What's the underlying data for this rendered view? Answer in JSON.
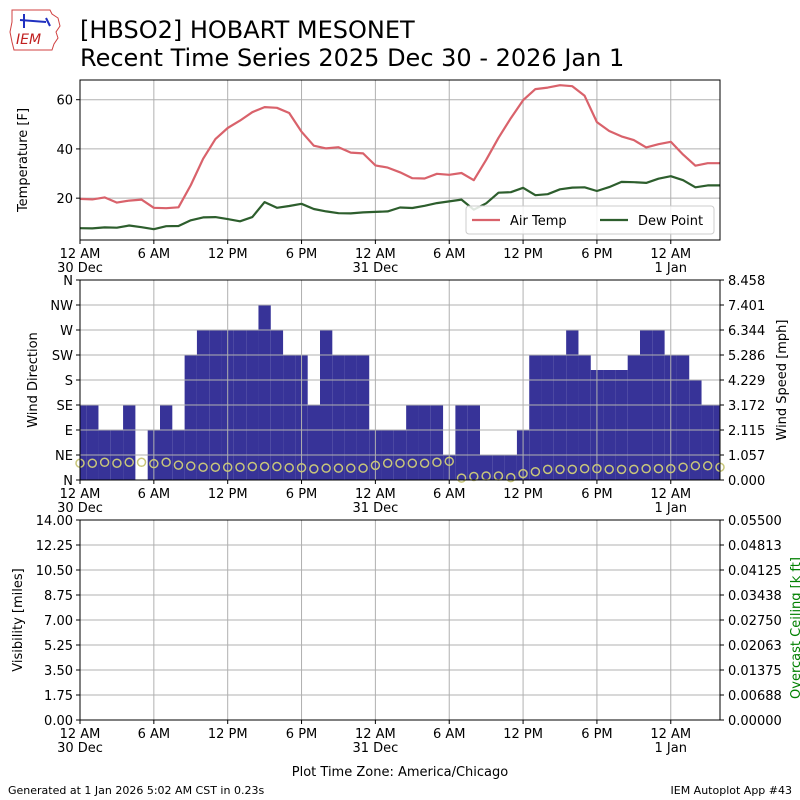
{
  "header": {
    "logo_text": "IEM",
    "title_line1": "[HBSO2] HOBART MESONET",
    "title_line2": "Recent Time Series 2025 Dec 30 - 2026 Jan 1"
  },
  "footer": {
    "generated": "Generated at 1 Jan 2026 5:02 AM CST in 0.23s",
    "app": "IEM Autoplot App #43"
  },
  "colors": {
    "air_temp": "#d9626b",
    "dew_point": "#2d5e2d",
    "wind_bar": "#373398",
    "wind_speed_marker": "#c8c67a",
    "grid": "#b0b0b0",
    "ceiling_label": "#008000"
  },
  "chart_data": [
    {
      "type": "line",
      "title": "",
      "ylabel": "Temperature [F]",
      "xlabel": "",
      "ylim": [
        3,
        68
      ],
      "yticks": [
        20,
        40,
        60
      ],
      "x_unit": "hours since 12 AM 30 Dec",
      "xlim": [
        0,
        52
      ],
      "xtick_labels": [
        {
          "x": 0,
          "label": "12 AM",
          "sub": "30 Dec"
        },
        {
          "x": 6,
          "label": "6 AM",
          "sub": ""
        },
        {
          "x": 12,
          "label": "12 PM",
          "sub": ""
        },
        {
          "x": 18,
          "label": "6 PM",
          "sub": ""
        },
        {
          "x": 24,
          "label": "12 AM",
          "sub": "31 Dec"
        },
        {
          "x": 30,
          "label": "6 AM",
          "sub": ""
        },
        {
          "x": 36,
          "label": "12 PM",
          "sub": ""
        },
        {
          "x": 42,
          "label": "6 PM",
          "sub": ""
        },
        {
          "x": 48,
          "label": "12 AM",
          "sub": "1 Jan"
        }
      ],
      "grid": true,
      "legend_position": "lower-right",
      "x": [
        0,
        1,
        2,
        3,
        4,
        5,
        6,
        7,
        8,
        9,
        10,
        11,
        12,
        13,
        14,
        15,
        16,
        17,
        18,
        19,
        20,
        21,
        22,
        23,
        24,
        25,
        26,
        27,
        28,
        29,
        30,
        31,
        32,
        33,
        34,
        35,
        36,
        37,
        38,
        39,
        40,
        41,
        42,
        43,
        44,
        45,
        46,
        47,
        48,
        49,
        50,
        51,
        52
      ],
      "series": [
        {
          "name": "Air Temp",
          "color": "#d9626b",
          "values": [
            19.7,
            19.5,
            20.3,
            18.2,
            19.0,
            19.4,
            16.1,
            15.9,
            16.3,
            25.3,
            36.0,
            44.0,
            48.5,
            51.5,
            54.9,
            57.0,
            56.7,
            54.6,
            47.0,
            41.3,
            40.2,
            40.7,
            38.5,
            38.2,
            33.3,
            32.4,
            30.5,
            28.1,
            28.0,
            29.9,
            29.5,
            30.2,
            27.3,
            35.6,
            44.5,
            52.5,
            59.8,
            64.3,
            64.9,
            65.9,
            65.5,
            61.6,
            50.9,
            47.3,
            45.1,
            43.6,
            40.6,
            41.9,
            42.9,
            37.7,
            33.2,
            34.2,
            34.2
          ]
        },
        {
          "name": "Dew Point",
          "color": "#2d5e2d",
          "values": [
            7.8,
            7.7,
            8.1,
            8.0,
            8.9,
            8.2,
            7.4,
            8.6,
            8.7,
            11.0,
            12.2,
            12.3,
            11.5,
            10.6,
            12.3,
            18.4,
            16.1,
            16.8,
            17.7,
            15.6,
            14.6,
            13.9,
            13.8,
            14.2,
            14.4,
            14.6,
            16.2,
            16.0,
            16.9,
            18.0,
            18.7,
            19.4,
            15.3,
            17.9,
            22.2,
            22.4,
            24.2,
            21.2,
            21.6,
            23.6,
            24.3,
            24.4,
            22.9,
            24.5,
            26.6,
            26.5,
            26.2,
            27.9,
            28.9,
            27.3,
            24.4,
            25.2,
            25.2
          ]
        }
      ]
    },
    {
      "type": "bar",
      "title": "",
      "ylabel": "Wind Direction",
      "y2label": "Wind Speed [mph]",
      "xlabel": "",
      "ylim": [
        0,
        360
      ],
      "y_tick_labels": [
        "N",
        "NE",
        "E",
        "SE",
        "S",
        "SW",
        "W",
        "NW",
        "N"
      ],
      "y2lim": [
        0,
        8.458
      ],
      "y2_tick_labels": [
        "0.000",
        "1.057",
        "2.115",
        "3.172",
        "4.229",
        "5.286",
        "6.344",
        "7.401",
        "8.458"
      ],
      "grid": true,
      "x": [
        0,
        1,
        2,
        3,
        4,
        5,
        6,
        7,
        8,
        9,
        10,
        11,
        12,
        13,
        14,
        15,
        16,
        17,
        18,
        19,
        20,
        21,
        22,
        23,
        24,
        25,
        26,
        27,
        28,
        29,
        30,
        31,
        32,
        33,
        34,
        35,
        36,
        37,
        38,
        39,
        40,
        41,
        42,
        43,
        44,
        45,
        46,
        47,
        48,
        49,
        50,
        51,
        52
      ],
      "series": [
        {
          "name": "Wind Direction",
          "color": "#373398",
          "values": [
            135,
            135,
            90,
            90,
            135,
            0,
            90,
            135,
            90,
            225,
            270,
            270,
            270,
            270,
            270,
            315,
            270,
            225,
            225,
            135,
            270,
            225,
            225,
            225,
            90,
            90,
            90,
            135,
            135,
            135,
            45,
            135,
            135,
            45,
            45,
            45,
            90,
            225,
            225,
            225,
            270,
            225,
            198,
            198,
            198,
            225,
            270,
            270,
            225,
            225,
            180,
            135,
            135
          ]
        },
        {
          "name": "Wind Speed",
          "color": "#c8c67a",
          "values": [
            0.71,
            0.71,
            0.75,
            0.71,
            0.75,
            0.75,
            0.69,
            0.75,
            0.63,
            0.59,
            0.54,
            0.54,
            0.54,
            0.54,
            0.57,
            0.57,
            0.57,
            0.52,
            0.52,
            0.47,
            0.5,
            0.5,
            0.5,
            0.5,
            0.62,
            0.71,
            0.71,
            0.71,
            0.71,
            0.75,
            0.79,
            0.08,
            0.15,
            0.17,
            0.17,
            0.1,
            0.27,
            0.35,
            0.45,
            0.45,
            0.45,
            0.48,
            0.48,
            0.45,
            0.45,
            0.45,
            0.48,
            0.48,
            0.48,
            0.54,
            0.6,
            0.6,
            0.54
          ]
        }
      ]
    },
    {
      "type": "line",
      "title": "",
      "ylabel": "Visibility [miles]",
      "y2label": "Overcast Ceiling [k ft]",
      "xlabel": "Plot Time Zone: America/Chicago",
      "ylim": [
        0,
        14
      ],
      "y_tick_labels": [
        "0.00",
        "1.75",
        "3.50",
        "5.25",
        "7.00",
        "8.75",
        "10.50",
        "12.25",
        "14.00"
      ],
      "y2lim": [
        0,
        0.055
      ],
      "y2_tick_labels": [
        "0.00000",
        "0.00688",
        "0.01375",
        "0.02063",
        "0.02750",
        "0.03438",
        "0.04125",
        "0.04813",
        "0.05500"
      ],
      "grid": true,
      "series": []
    }
  ]
}
